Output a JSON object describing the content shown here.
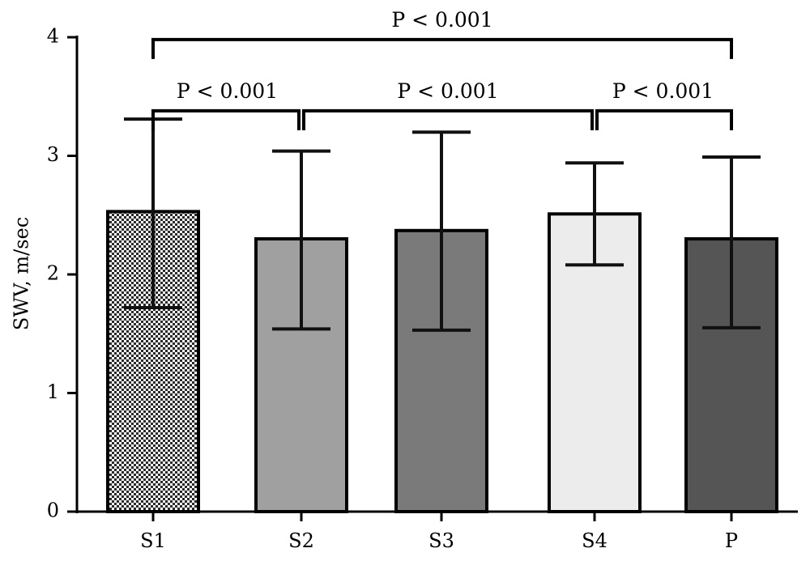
{
  "chart_data": {
    "type": "bar",
    "title": "",
    "xlabel": "",
    "ylabel": "SWV, m/sec",
    "ylim": [
      0,
      4
    ],
    "yticks": [
      "0",
      "1",
      "2",
      "3",
      "4"
    ],
    "categories": [
      "S1",
      "S2",
      "S3",
      "S4",
      "P"
    ],
    "values": [
      2.53,
      2.3,
      2.37,
      2.51,
      2.3
    ],
    "error_low": [
      1.72,
      1.54,
      1.53,
      2.08,
      1.55
    ],
    "error_high": [
      3.31,
      3.04,
      3.2,
      2.94,
      2.99
    ],
    "bar_fills": [
      "pattern:checker",
      "#a0a0a0",
      "#7a7a7a",
      "#ececec",
      "#555555"
    ],
    "significance": [
      {
        "from": 0,
        "to": 4,
        "label": "P < 0.001",
        "level": 3.98
      },
      {
        "from": 0,
        "to": 1,
        "label": "P < 0.001",
        "level": 3.38
      },
      {
        "from": 1,
        "to": 3,
        "label": "P < 0.001",
        "level": 3.38
      },
      {
        "from": 3,
        "to": 4,
        "label": "P < 0.001",
        "level": 3.38
      }
    ],
    "grid": false
  }
}
